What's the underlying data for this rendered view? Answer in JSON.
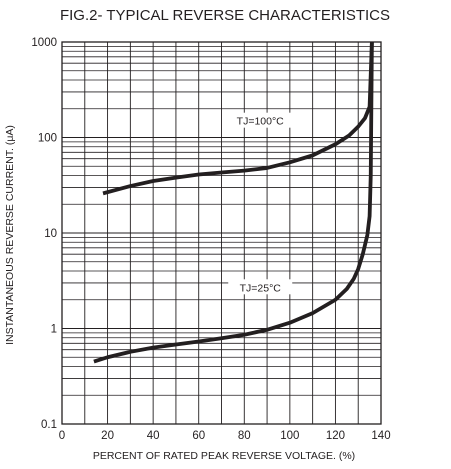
{
  "chart_data": {
    "type": "line",
    "title": "FIG.2- TYPICAL REVERSE CHARACTERISTICS",
    "xlabel": "PERCENT OF RATED PEAK REVERSE VOLTAGE. (%)",
    "ylabel": "INSTANTANEOUS REVERSE CURRENT. (μA)",
    "xlim": [
      0,
      140
    ],
    "ylim": [
      0.1,
      1000
    ],
    "yscale": "log",
    "x_ticks": [
      "0",
      "20",
      "40",
      "60",
      "80",
      "100",
      "120",
      "140"
    ],
    "y_ticks": [
      "0.1",
      "1",
      "10",
      "100",
      "1000"
    ],
    "grid": true,
    "series": [
      {
        "name": "TJ=100°C",
        "x": [
          18,
          30,
          40,
          50,
          60,
          70,
          80,
          90,
          100,
          110,
          120,
          126,
          130,
          133,
          135,
          136
        ],
        "y": [
          26,
          31,
          35,
          38,
          41,
          43,
          45,
          48,
          55,
          65,
          85,
          105,
          130,
          160,
          210,
          1000
        ]
      },
      {
        "name": "TJ=25°C",
        "x": [
          14,
          20,
          30,
          40,
          50,
          60,
          70,
          80,
          90,
          100,
          110,
          120,
          125,
          128,
          130,
          132,
          134,
          135,
          135.5,
          136
        ],
        "y": [
          0.45,
          0.5,
          0.57,
          0.63,
          0.68,
          0.73,
          0.79,
          0.86,
          0.97,
          1.15,
          1.45,
          2.0,
          2.6,
          3.3,
          4.2,
          6,
          9.5,
          15,
          40,
          1000
        ]
      }
    ],
    "annotations": [
      {
        "text": "TJ=100°C"
      },
      {
        "text": "TJ=25°C"
      }
    ]
  }
}
